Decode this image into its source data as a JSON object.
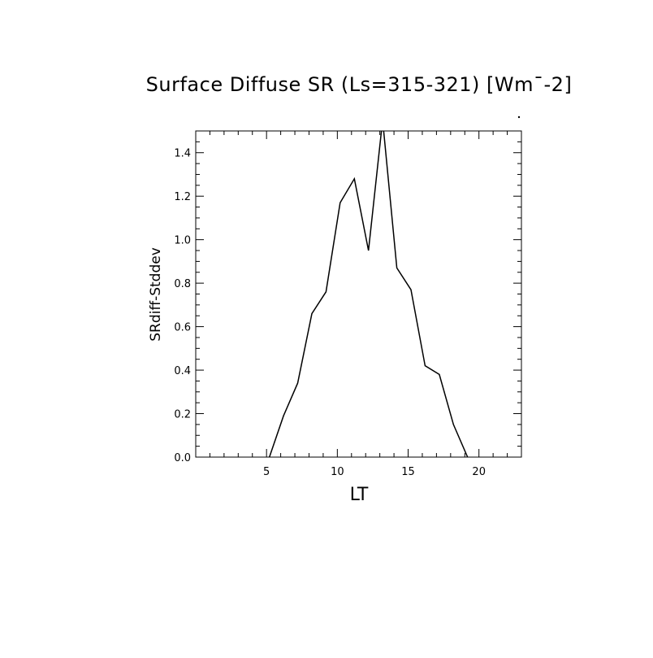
{
  "chart_data": {
    "type": "line",
    "title": "Surface Diffuse SR (Ls=315-321) [Wm¯-2]",
    "xlabel": "LT",
    "ylabel": "SRdiff-Stddev",
    "xlim": [
      0,
      23
    ],
    "ylim": [
      0,
      1.5
    ],
    "x_ticks": [
      5,
      10,
      15,
      20
    ],
    "x_tick_labels": [
      "5",
      "10",
      "15",
      "20"
    ],
    "y_ticks": [
      0,
      0.2,
      0.4,
      0.6,
      0.8,
      1.0,
      1.2,
      1.4
    ],
    "y_tick_labels": [
      "0.0",
      "0.2",
      "0.4",
      "0.6",
      "0.8",
      "1.0",
      "1.2",
      "1.4"
    ],
    "grid": false,
    "colors": {
      "line": "#000000",
      "axes": "#000000",
      "background": "#ffffff"
    },
    "series": [
      {
        "x": [
          5.2,
          6.2,
          7.2,
          8.2,
          9.2,
          10.2,
          11.2,
          12.2,
          13.2,
          14.2,
          15.2,
          16.2,
          17.2,
          18.2,
          19.2
        ],
        "values": [
          0.0,
          0.19,
          0.34,
          0.66,
          0.76,
          1.17,
          1.28,
          0.95,
          1.55,
          0.87,
          0.77,
          0.42,
          0.38,
          0.15,
          0.0
        ]
      }
    ]
  }
}
